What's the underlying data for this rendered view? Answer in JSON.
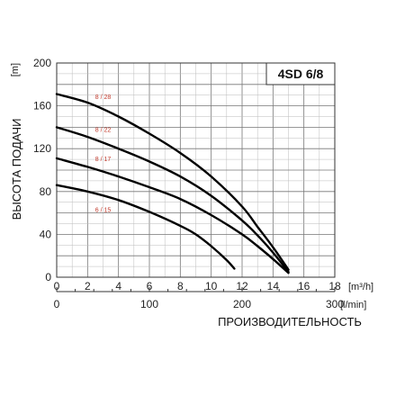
{
  "chart_data": {
    "type": "line",
    "title": "4SD 6/8",
    "ylabel": "ВЫСОТА ПОДАЧИ",
    "yunit": "[m]",
    "xlabel": "ПРОИЗВОДИТЕЛЬНОСТЬ",
    "xunit_top": "[m³/h]",
    "xunit_bottom": "[l/min]",
    "xlim": [
      0,
      18
    ],
    "ylim": [
      0,
      200
    ],
    "x_ticks": [
      "0",
      "2",
      "4",
      "6",
      "8",
      "10",
      "12",
      "14",
      "16",
      "18"
    ],
    "y_ticks": [
      "0",
      "40",
      "80",
      "120",
      "160",
      "200"
    ],
    "x_ticks_lpm": [
      "0",
      "100",
      "200",
      "300"
    ],
    "grid": true,
    "colors": {
      "series": "#000000",
      "label": "#c0392b",
      "grid": "#999999"
    },
    "series": [
      {
        "name": "8 / 28",
        "x": [
          0,
          2,
          4,
          6,
          8,
          10,
          12,
          13,
          14,
          15
        ],
        "y": [
          171,
          163,
          150,
          134,
          116,
          94,
          66,
          47,
          28,
          7
        ]
      },
      {
        "name": "8 / 22",
        "x": [
          0,
          2,
          4,
          6,
          8,
          10,
          12,
          13,
          14,
          15
        ],
        "y": [
          140,
          131,
          120,
          108,
          94,
          76,
          53,
          39,
          23,
          5
        ]
      },
      {
        "name": "8 / 17",
        "x": [
          0,
          2,
          4,
          6,
          8,
          10,
          12,
          13,
          14,
          15
        ],
        "y": [
          111,
          103,
          94,
          84,
          73,
          58,
          40,
          29,
          17,
          4
        ]
      },
      {
        "name": "6 / 15",
        "x": [
          0,
          2,
          4,
          6,
          8,
          9,
          10,
          11,
          11.5
        ],
        "y": [
          86,
          80,
          72,
          61,
          48,
          40,
          29,
          16,
          8
        ]
      }
    ]
  }
}
